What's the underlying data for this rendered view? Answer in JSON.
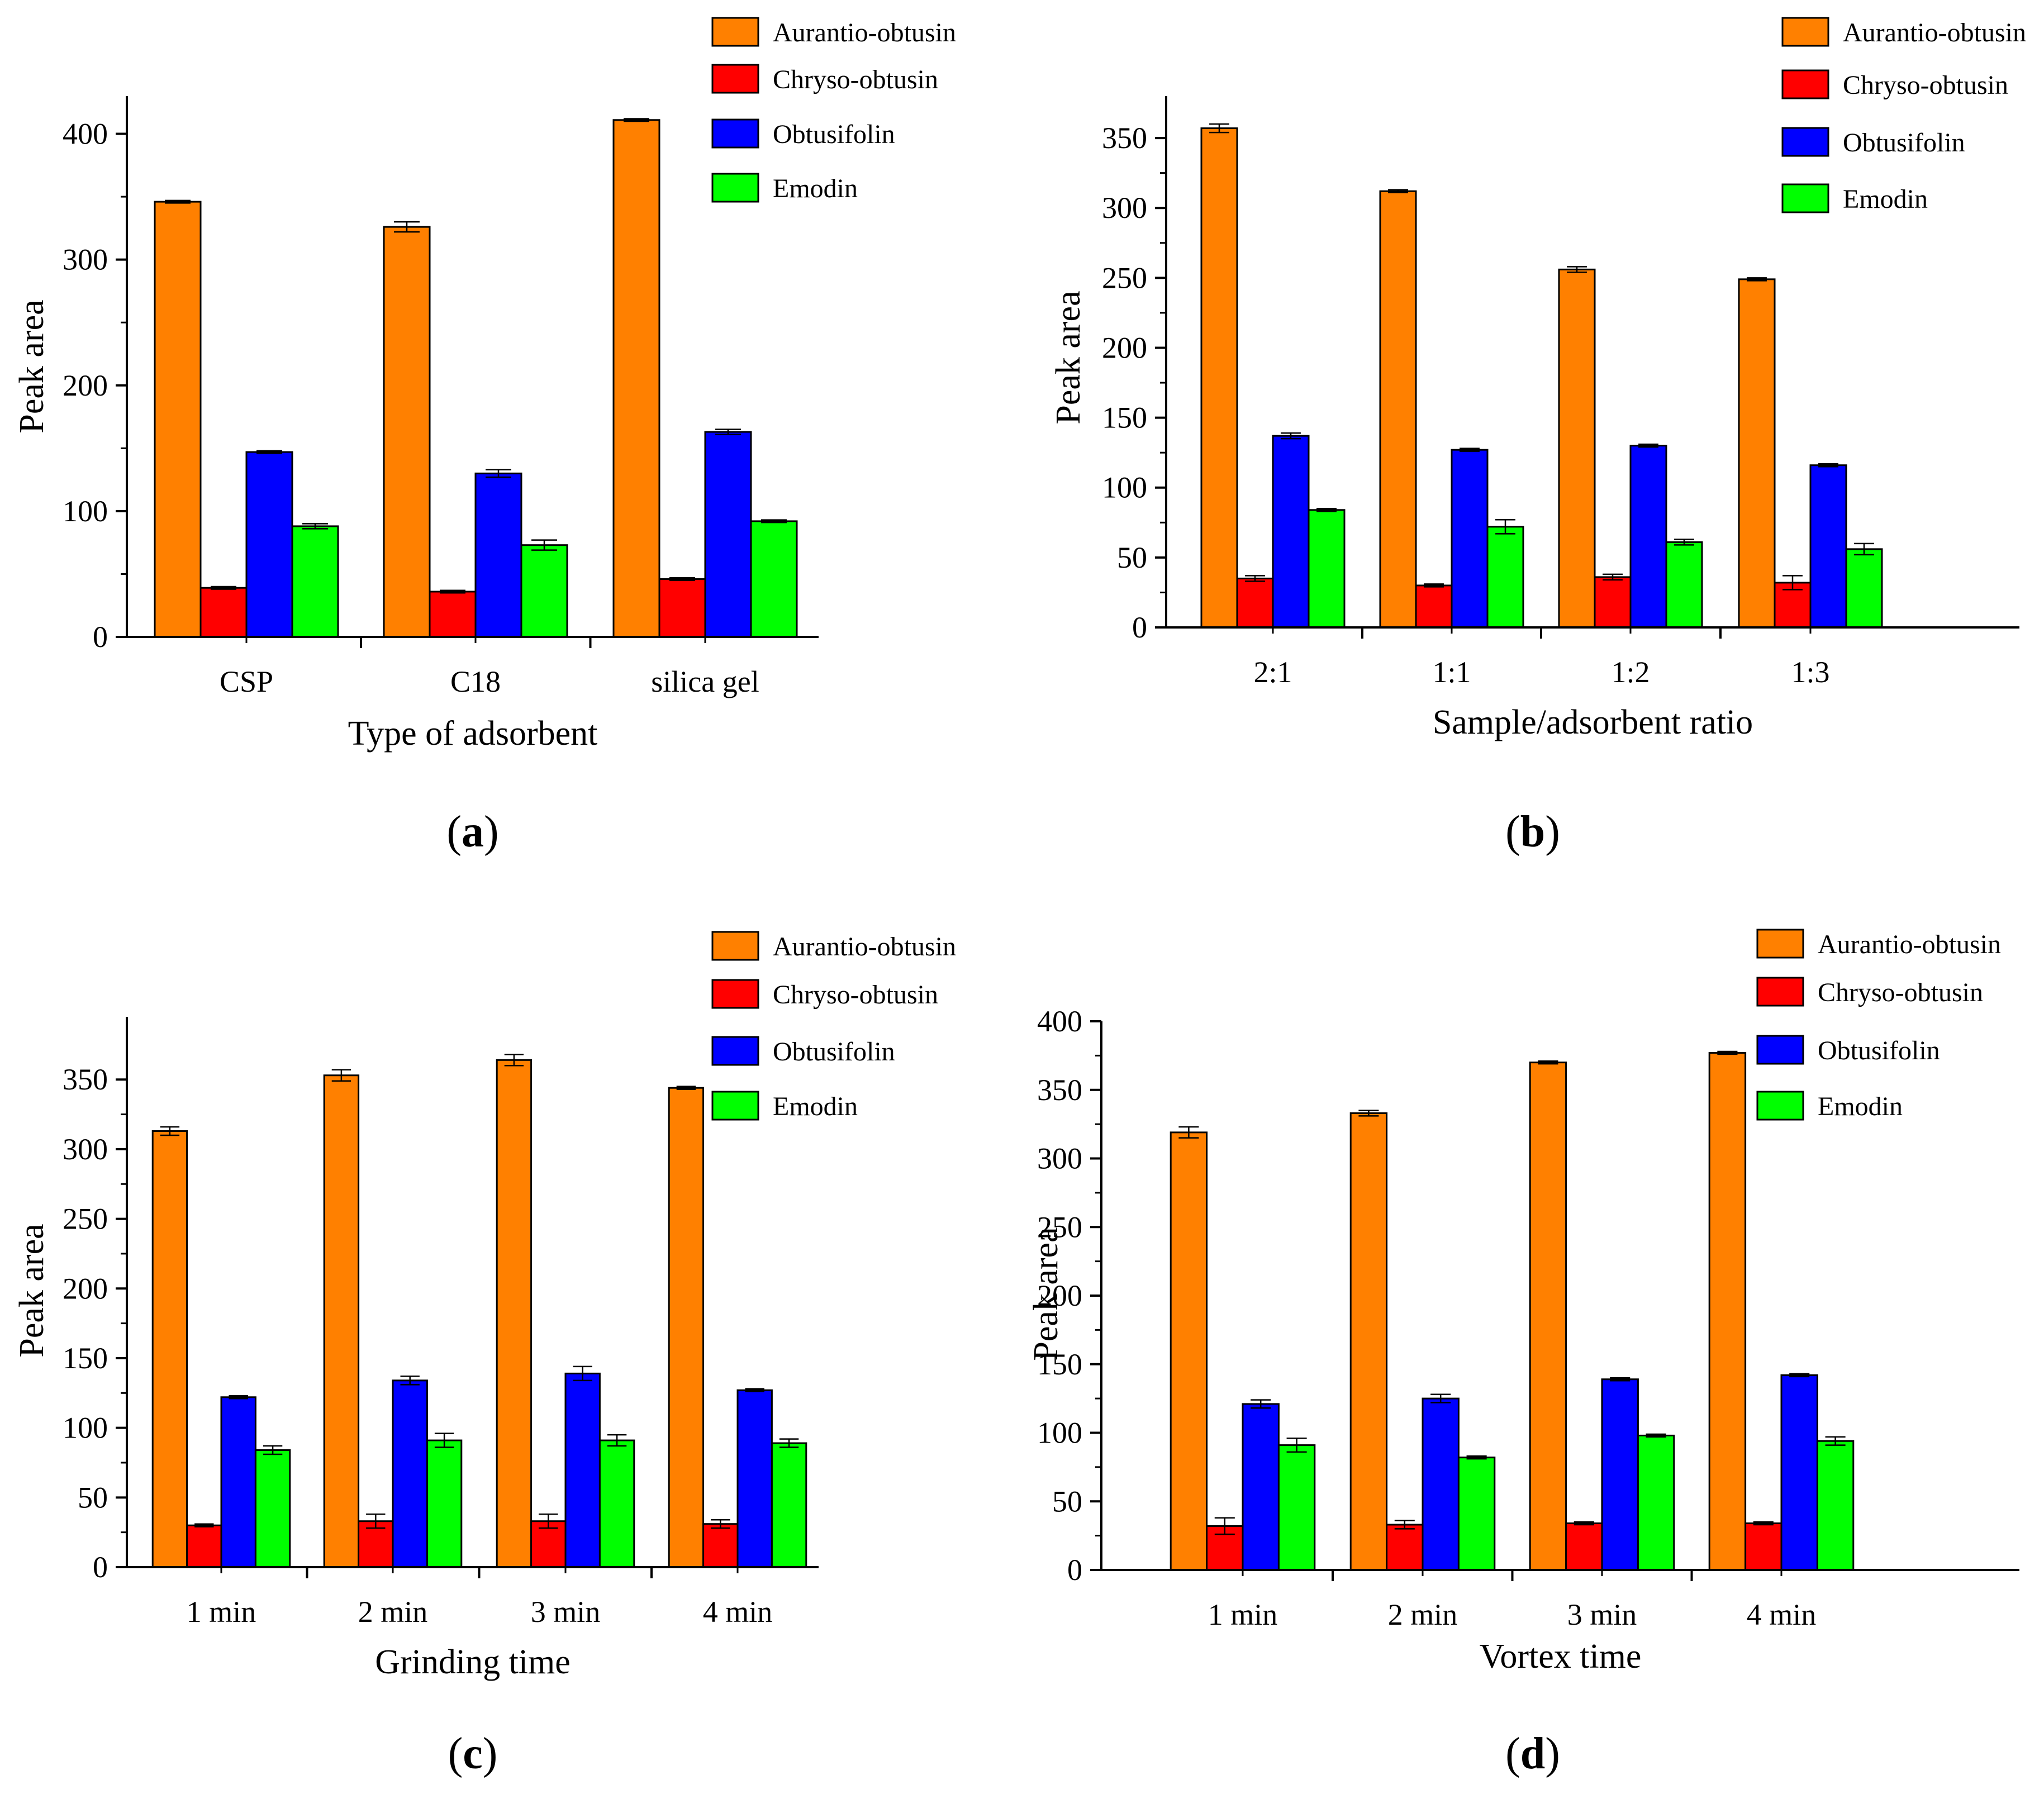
{
  "figure": {
    "colors": {
      "Aurantio-obtusin": "#ff8000",
      "Chryso-obtusin": "#ff0000",
      "Obtusifolin": "#0000ff",
      "Emodin": "#00ff00"
    }
  },
  "chart_data": [
    {
      "type": "bar",
      "panel": "a",
      "title": "",
      "xlabel": "Type of adsorbent",
      "ylabel": "Peak area",
      "ylim": [
        0,
        430
      ],
      "yticks": [
        0,
        100,
        200,
        300,
        400
      ],
      "categories": [
        "CSP",
        "C18",
        "silica gel"
      ],
      "legend_position": "top-right",
      "grid": false,
      "series": [
        {
          "name": "Aurantio-obtusin",
          "values": [
            346,
            326,
            411
          ],
          "errors": [
            1,
            4,
            1
          ]
        },
        {
          "name": "Chryso-obtusin",
          "values": [
            39,
            36,
            46
          ],
          "errors": [
            1,
            1,
            1
          ]
        },
        {
          "name": "Obtusifolin",
          "values": [
            147,
            130,
            163
          ],
          "errors": [
            1,
            3,
            2
          ]
        },
        {
          "name": "Emodin",
          "values": [
            88,
            73,
            92
          ],
          "errors": [
            2,
            4,
            1
          ]
        }
      ]
    },
    {
      "type": "bar",
      "panel": "b",
      "title": "",
      "xlabel": "Sample/adsorbent ratio",
      "ylabel": "Peak area",
      "ylim": [
        0,
        380
      ],
      "yticks": [
        0,
        50,
        100,
        150,
        200,
        250,
        300,
        350
      ],
      "categories": [
        "2:1",
        "1:1",
        "1:2",
        "1:3"
      ],
      "legend_position": "top-right",
      "grid": false,
      "series": [
        {
          "name": "Aurantio-obtusin",
          "values": [
            357,
            312,
            256,
            249
          ],
          "errors": [
            3,
            1,
            2,
            1
          ]
        },
        {
          "name": "Chryso-obtusin",
          "values": [
            35,
            30,
            36,
            32
          ],
          "errors": [
            2,
            1,
            2,
            5
          ]
        },
        {
          "name": "Obtusifolin",
          "values": [
            137,
            127,
            130,
            116
          ],
          "errors": [
            2,
            1,
            1,
            1
          ]
        },
        {
          "name": "Emodin",
          "values": [
            84,
            72,
            61,
            56
          ],
          "errors": [
            1,
            5,
            2,
            4
          ]
        }
      ]
    },
    {
      "type": "bar",
      "panel": "c",
      "title": "",
      "xlabel": "Grinding time",
      "ylabel": "Peak area",
      "ylim": [
        0,
        395
      ],
      "yticks": [
        0,
        50,
        100,
        150,
        200,
        250,
        300,
        350
      ],
      "categories": [
        "1 min",
        "2 min",
        "3 min",
        "4 min"
      ],
      "legend_position": "top-right",
      "grid": false,
      "series": [
        {
          "name": "Aurantio-obtusin",
          "values": [
            313,
            353,
            364,
            344
          ],
          "errors": [
            3,
            4,
            4,
            1
          ]
        },
        {
          "name": "Chryso-obtusin",
          "values": [
            30,
            33,
            33,
            31
          ],
          "errors": [
            1,
            5,
            5,
            3
          ]
        },
        {
          "name": "Obtusifolin",
          "values": [
            122,
            134,
            139,
            127
          ],
          "errors": [
            1,
            3,
            5,
            1
          ]
        },
        {
          "name": "Emodin",
          "values": [
            84,
            91,
            91,
            89
          ],
          "errors": [
            3,
            5,
            4,
            3
          ]
        }
      ]
    },
    {
      "type": "bar",
      "panel": "d",
      "title": "",
      "xlabel": "Vortex time",
      "ylabel": "Peak area",
      "ylim": [
        0,
        400
      ],
      "yticks": [
        0,
        50,
        100,
        150,
        200,
        250,
        300,
        350,
        400
      ],
      "categories": [
        "1 min",
        "2 min",
        "3 min",
        "4 min"
      ],
      "legend_position": "top-right",
      "grid": false,
      "series": [
        {
          "name": "Aurantio-obtusin",
          "values": [
            319,
            333,
            370,
            377
          ],
          "errors": [
            4,
            2,
            1,
            1
          ]
        },
        {
          "name": "Chryso-obtusin",
          "values": [
            32,
            33,
            34,
            34
          ],
          "errors": [
            6,
            3,
            1,
            1
          ]
        },
        {
          "name": "Obtusifolin",
          "values": [
            121,
            125,
            139,
            142
          ],
          "errors": [
            3,
            3,
            1,
            1
          ]
        },
        {
          "name": "Emodin",
          "values": [
            91,
            82,
            98,
            94
          ],
          "errors": [
            5,
            1,
            1,
            3
          ]
        }
      ]
    }
  ]
}
